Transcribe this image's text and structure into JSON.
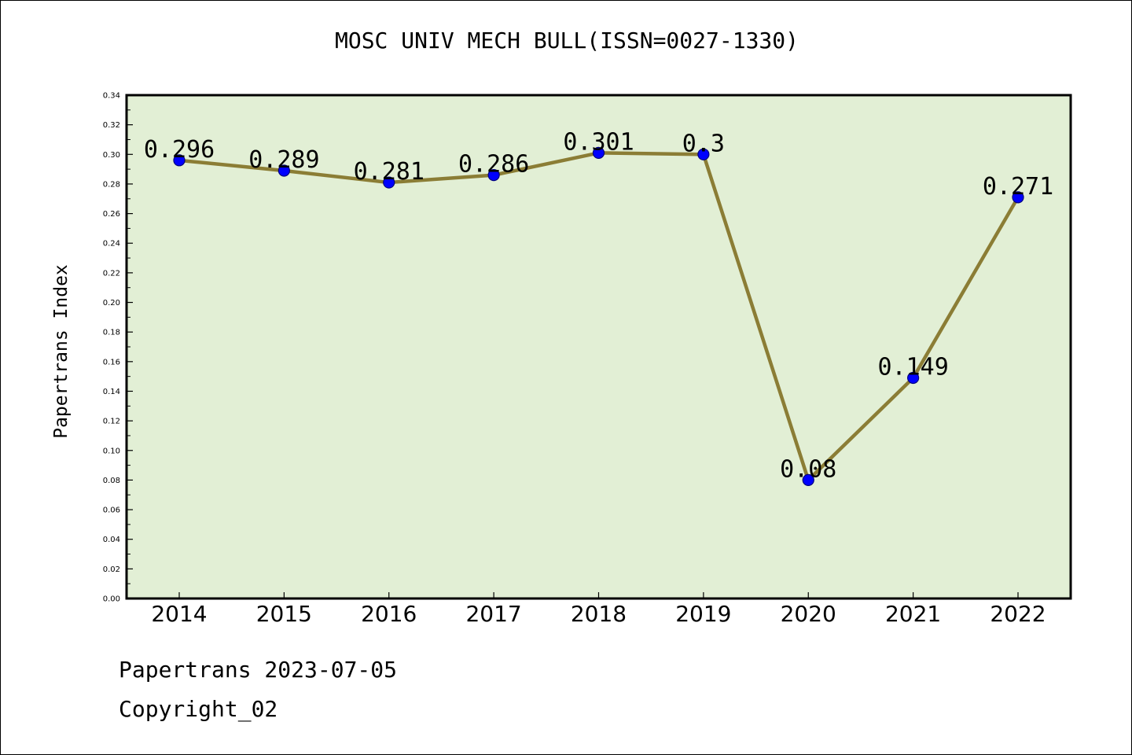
{
  "chart_data": {
    "type": "line",
    "title": "MOSC UNIV MECH BULL(ISSN=0027-1330)",
    "xlabel": "",
    "ylabel": "Papertrans Index",
    "x": [
      "2014",
      "2015",
      "2016",
      "2017",
      "2018",
      "2019",
      "2020",
      "2021",
      "2022"
    ],
    "series": [
      {
        "values": [
          0.296,
          0.289,
          0.281,
          0.286,
          0.301,
          0.3,
          0.08,
          0.149,
          0.271
        ],
        "labels": [
          "0.296",
          "0.289",
          "0.281",
          "0.286",
          "0.301",
          "0.3",
          "0.08",
          "0.149",
          "0.271"
        ]
      }
    ],
    "ylim": [
      0,
      0.34
    ],
    "yticks": [
      "0.00",
      "0.02",
      "0.04",
      "0.06",
      "0.08",
      "0.10",
      "0.12",
      "0.14",
      "0.16",
      "0.18",
      "0.20",
      "0.22",
      "0.24",
      "0.26",
      "0.28",
      "0.30",
      "0.32",
      "0.34"
    ],
    "grid": false,
    "colors": {
      "plot_background": "#e2efd5",
      "line": "#8b7d35",
      "marker": "#0000ff"
    }
  },
  "footer": {
    "date_text": "Papertrans 2023-07-05",
    "copyright_text": "Copyright_02"
  }
}
